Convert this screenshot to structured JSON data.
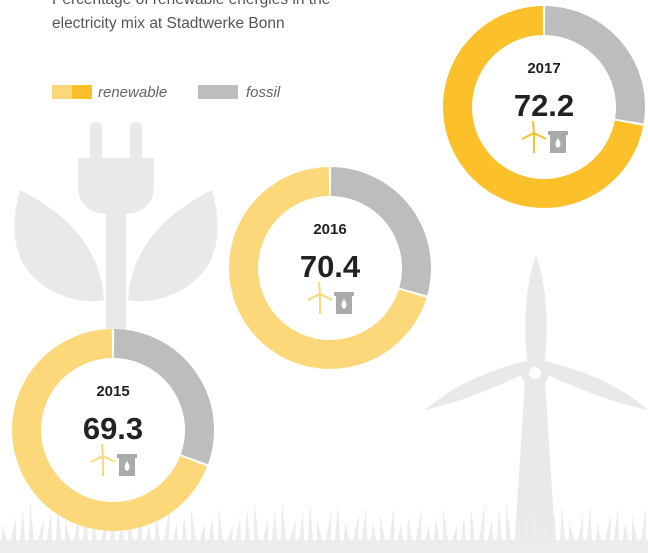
{
  "title": "Percentage of renewable energies in the electricity mix at Stadtwerke Bonn",
  "legend": {
    "renewable": {
      "label": "renewable",
      "colors": [
        "#fdd87a",
        "#fcc02a"
      ]
    },
    "fossil": {
      "label": "fossil",
      "color": "#bdbdbd"
    }
  },
  "chart_data": [
    {
      "type": "pie",
      "title": "2015",
      "categories": [
        "renewable",
        "fossil"
      ],
      "values": [
        69.3,
        30.7
      ],
      "colors": [
        "#fdd87a",
        "#bdbdbd"
      ]
    },
    {
      "type": "pie",
      "title": "2016",
      "categories": [
        "renewable",
        "fossil"
      ],
      "values": [
        70.4,
        29.6
      ],
      "colors": [
        "#fdd87a",
        "#bdbdbd"
      ]
    },
    {
      "type": "pie",
      "title": "2017",
      "categories": [
        "renewable",
        "fossil"
      ],
      "values": [
        72.2,
        27.8
      ],
      "colors": [
        "#fcc02a",
        "#bdbdbd"
      ]
    }
  ]
}
